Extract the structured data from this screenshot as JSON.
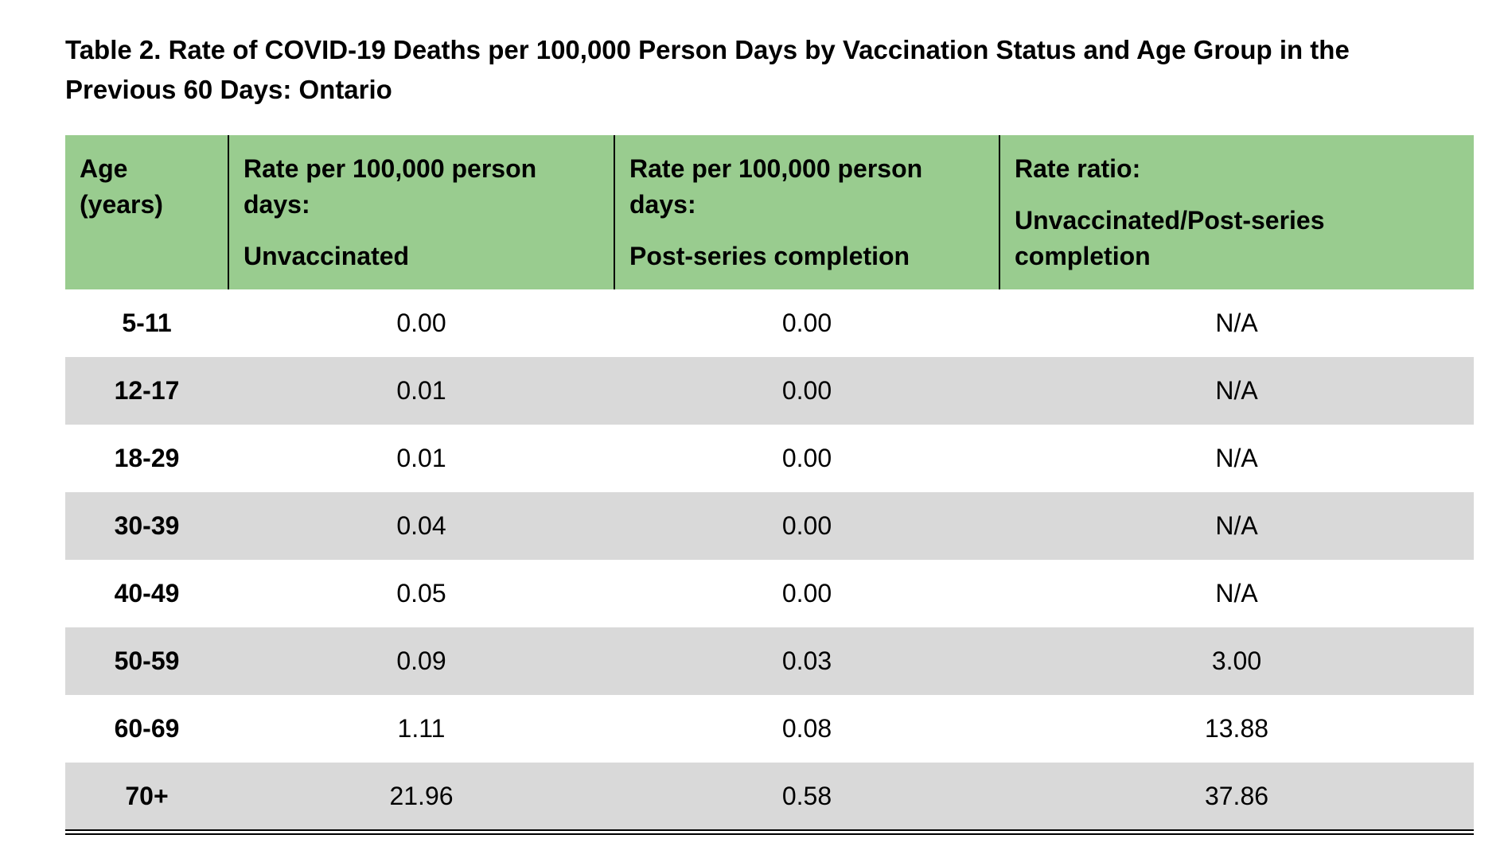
{
  "title": {
    "line1": "Table 2. Rate of COVID-19 Deaths per 100,000 Person Days by Vaccination Status and Age Group in the",
    "line2": "Previous 60 Days: Ontario"
  },
  "table": {
    "headers": [
      {
        "lines": [
          "Age",
          "(years)"
        ],
        "sub": ""
      },
      {
        "lines": [
          "Rate per 100,000 person",
          "days:"
        ],
        "sub": "Unvaccinated"
      },
      {
        "lines": [
          "Rate per 100,000 person",
          "days:"
        ],
        "sub": "Post-series completion"
      },
      {
        "lines": [
          "Rate ratio:"
        ],
        "sub": "Unvaccinated/Post-series completion"
      }
    ],
    "rows": [
      [
        "5-11",
        "0.00",
        "0.00",
        "N/A"
      ],
      [
        "12-17",
        "0.01",
        "0.00",
        "N/A"
      ],
      [
        "18-29",
        "0.01",
        "0.00",
        "N/A"
      ],
      [
        "30-39",
        "0.04",
        "0.00",
        "N/A"
      ],
      [
        "40-49",
        "0.05",
        "0.00",
        "N/A"
      ],
      [
        "50-59",
        "0.09",
        "0.03",
        "3.00"
      ],
      [
        "60-69",
        "1.11",
        "0.08",
        "13.88"
      ],
      [
        "70+",
        "21.96",
        "0.58",
        "37.86"
      ]
    ]
  },
  "colors": {
    "header_fill": "#99cc8f",
    "shaded_row": "#d9d9d9",
    "rule": "#000000"
  }
}
